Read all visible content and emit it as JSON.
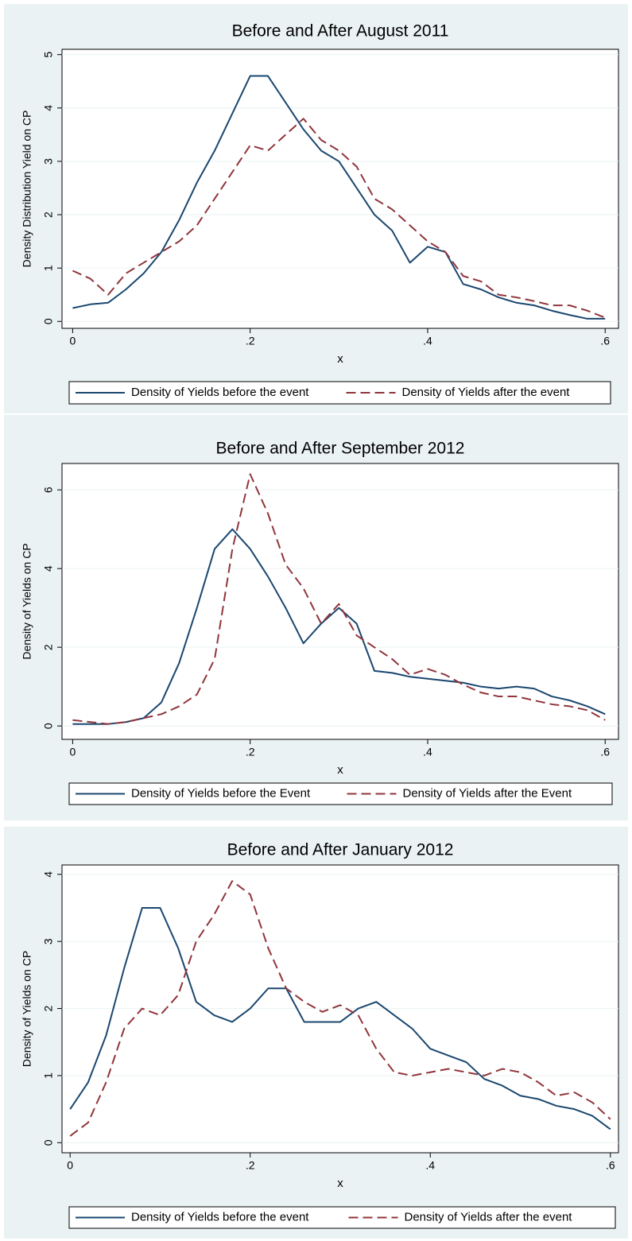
{
  "chart_data": [
    {
      "type": "line",
      "title": "Before and After August 2011",
      "x_label": "x",
      "y_label": "Density Distribution Yield on CP",
      "x": [
        0,
        0.02,
        0.04,
        0.06,
        0.08,
        0.1,
        0.12,
        0.14,
        0.16,
        0.18,
        0.2,
        0.22,
        0.24,
        0.26,
        0.28,
        0.3,
        0.32,
        0.34,
        0.36,
        0.38,
        0.4,
        0.42,
        0.44,
        0.46,
        0.48,
        0.5,
        0.52,
        0.54,
        0.56,
        0.58,
        0.6
      ],
      "series": [
        {
          "name": "Density of Yields before the event",
          "color": "#1a476f",
          "dash": "solid",
          "values": [
            0.25,
            0.32,
            0.35,
            0.6,
            0.9,
            1.3,
            1.9,
            2.6,
            3.2,
            3.9,
            4.6,
            4.6,
            4.1,
            3.6,
            3.2,
            3.0,
            2.5,
            2.0,
            1.7,
            1.1,
            1.4,
            1.3,
            0.7,
            0.6,
            0.45,
            0.35,
            0.3,
            0.2,
            0.12,
            0.05,
            0.05
          ]
        },
        {
          "name": "Density of Yields after the event",
          "color": "#90353b",
          "dash": "dashed",
          "values": [
            0.95,
            0.8,
            0.5,
            0.9,
            1.1,
            1.3,
            1.5,
            1.8,
            2.3,
            2.8,
            3.3,
            3.2,
            3.5,
            3.8,
            3.4,
            3.2,
            2.9,
            2.3,
            2.1,
            1.8,
            1.5,
            1.3,
            0.85,
            0.75,
            0.5,
            0.45,
            0.38,
            0.3,
            0.3,
            0.2,
            0.07
          ]
        }
      ],
      "xlim": [
        -0.012,
        0.615
      ],
      "xticks": [
        0,
        {
          "value": 0.2,
          "label": ".2"
        },
        {
          "value": 0.4,
          "label": ".4"
        },
        {
          "value": 0.6,
          "label": ".6"
        }
      ],
      "ylim": [
        -0.13,
        5.1
      ],
      "yticks": [
        0,
        1,
        2,
        3,
        4,
        5
      ],
      "grid": true
    },
    {
      "type": "line",
      "title": "Before and After September 2012",
      "x_label": "x",
      "y_label": "Density of Yields on CP",
      "x": [
        0,
        0.02,
        0.04,
        0.06,
        0.08,
        0.1,
        0.12,
        0.14,
        0.16,
        0.18,
        0.2,
        0.22,
        0.24,
        0.26,
        0.28,
        0.3,
        0.32,
        0.34,
        0.36,
        0.38,
        0.4,
        0.42,
        0.44,
        0.46,
        0.48,
        0.5,
        0.52,
        0.54,
        0.56,
        0.58,
        0.6
      ],
      "series": [
        {
          "name": "Density of Yields before the Event",
          "color": "#1a476f",
          "dash": "solid",
          "values": [
            0.05,
            0.05,
            0.05,
            0.1,
            0.2,
            0.6,
            1.6,
            3.0,
            4.5,
            5.0,
            4.5,
            3.8,
            3.0,
            2.1,
            2.6,
            3.0,
            2.6,
            1.4,
            1.35,
            1.25,
            1.2,
            1.15,
            1.1,
            1.0,
            0.95,
            1.0,
            0.95,
            0.75,
            0.65,
            0.5,
            0.3
          ]
        },
        {
          "name": "Density of Yields after the Event",
          "color": "#90353b",
          "dash": "dashed",
          "values": [
            0.15,
            0.1,
            0.05,
            0.1,
            0.2,
            0.3,
            0.5,
            0.8,
            1.7,
            4.5,
            6.4,
            5.4,
            4.1,
            3.5,
            2.6,
            3.1,
            2.3,
            2.0,
            1.7,
            1.3,
            1.45,
            1.3,
            1.05,
            0.85,
            0.75,
            0.75,
            0.65,
            0.55,
            0.5,
            0.4,
            0.15
          ]
        }
      ],
      "xlim": [
        -0.012,
        0.615
      ],
      "xticks": [
        0,
        {
          "value": 0.2,
          "label": ".2"
        },
        {
          "value": 0.4,
          "label": ".4"
        },
        {
          "value": 0.6,
          "label": ".6"
        }
      ],
      "ylim": [
        -0.34,
        6.67
      ],
      "yticks": [
        0,
        2,
        4,
        6
      ],
      "grid": true
    },
    {
      "type": "line",
      "title": "Before and After January 2012",
      "x_label": "x",
      "y_label": "Density of Yields on CP",
      "x": [
        0,
        0.02,
        0.04,
        0.06,
        0.08,
        0.1,
        0.12,
        0.14,
        0.16,
        0.18,
        0.2,
        0.22,
        0.24,
        0.26,
        0.28,
        0.3,
        0.32,
        0.34,
        0.36,
        0.38,
        0.4,
        0.42,
        0.44,
        0.46,
        0.48,
        0.5,
        0.52,
        0.54,
        0.56,
        0.58,
        0.6
      ],
      "series": [
        {
          "name": "Density of Yields before the event",
          "color": "#1a476f",
          "dash": "solid",
          "values": [
            0.5,
            0.9,
            1.6,
            2.6,
            3.5,
            3.5,
            2.9,
            2.1,
            1.9,
            1.8,
            2.0,
            2.3,
            2.3,
            1.8,
            1.8,
            1.8,
            2.0,
            2.1,
            1.9,
            1.7,
            1.4,
            1.3,
            1.2,
            0.95,
            0.85,
            0.7,
            0.65,
            0.55,
            0.5,
            0.4,
            0.2
          ]
        },
        {
          "name": "Density of Yields after the event",
          "color": "#90353b",
          "dash": "dashed",
          "values": [
            0.1,
            0.3,
            0.9,
            1.7,
            2.0,
            1.9,
            2.2,
            3.0,
            3.4,
            3.9,
            3.7,
            2.9,
            2.3,
            2.1,
            1.95,
            2.05,
            1.9,
            1.4,
            1.05,
            1.0,
            1.05,
            1.1,
            1.05,
            1.0,
            1.1,
            1.05,
            0.9,
            0.7,
            0.75,
            0.6,
            0.35
          ]
        }
      ],
      "xlim": [
        -0.009,
        0.609
      ],
      "xticks": [
        0,
        {
          "value": 0.2,
          "label": ".2"
        },
        {
          "value": 0.4,
          "label": ".4"
        },
        {
          "value": 0.6,
          "label": ".6"
        }
      ],
      "ylim": [
        -0.15,
        4.14
      ],
      "yticks": [
        0,
        1,
        2,
        3,
        4
      ],
      "grid": true
    }
  ]
}
